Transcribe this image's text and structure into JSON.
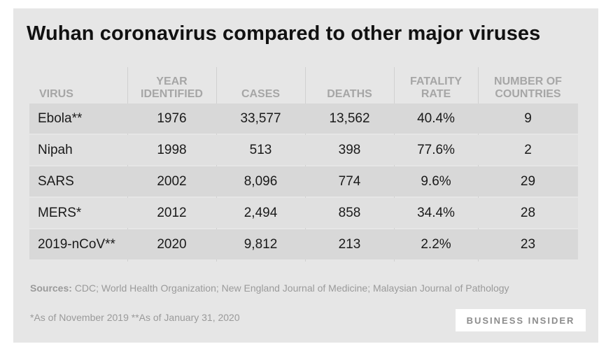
{
  "title": "Wuhan coronavirus compared to other major viruses",
  "chart_data": {
    "type": "table",
    "columns": [
      "VIRUS",
      "YEAR\nIDENTIFIED",
      "CASES",
      "DEATHS",
      "FATALITY\nRATE",
      "NUMBER OF\nCOUNTRIES"
    ],
    "rows": [
      [
        "Ebola**",
        "1976",
        "33,577",
        "13,562",
        "40.4%",
        "9"
      ],
      [
        "Nipah",
        "1998",
        "513",
        "398",
        "77.6%",
        "2"
      ],
      [
        "SARS",
        "2002",
        "8,096",
        "774",
        "9.6%",
        "29"
      ],
      [
        "MERS*",
        "2012",
        "2,494",
        "858",
        "34.4%",
        "28"
      ],
      [
        "2019-nCoV**",
        "2020",
        "9,812",
        "213",
        "2.2%",
        "23"
      ]
    ]
  },
  "sources_label": "Sources:",
  "sources_text": "CDC; World Health Organization; New England Journal of Medicine; Malaysian Journal of Pathology",
  "footnote": "*As of November 2019  **As of January 31, 2020",
  "brand": "BUSINESS INSIDER"
}
